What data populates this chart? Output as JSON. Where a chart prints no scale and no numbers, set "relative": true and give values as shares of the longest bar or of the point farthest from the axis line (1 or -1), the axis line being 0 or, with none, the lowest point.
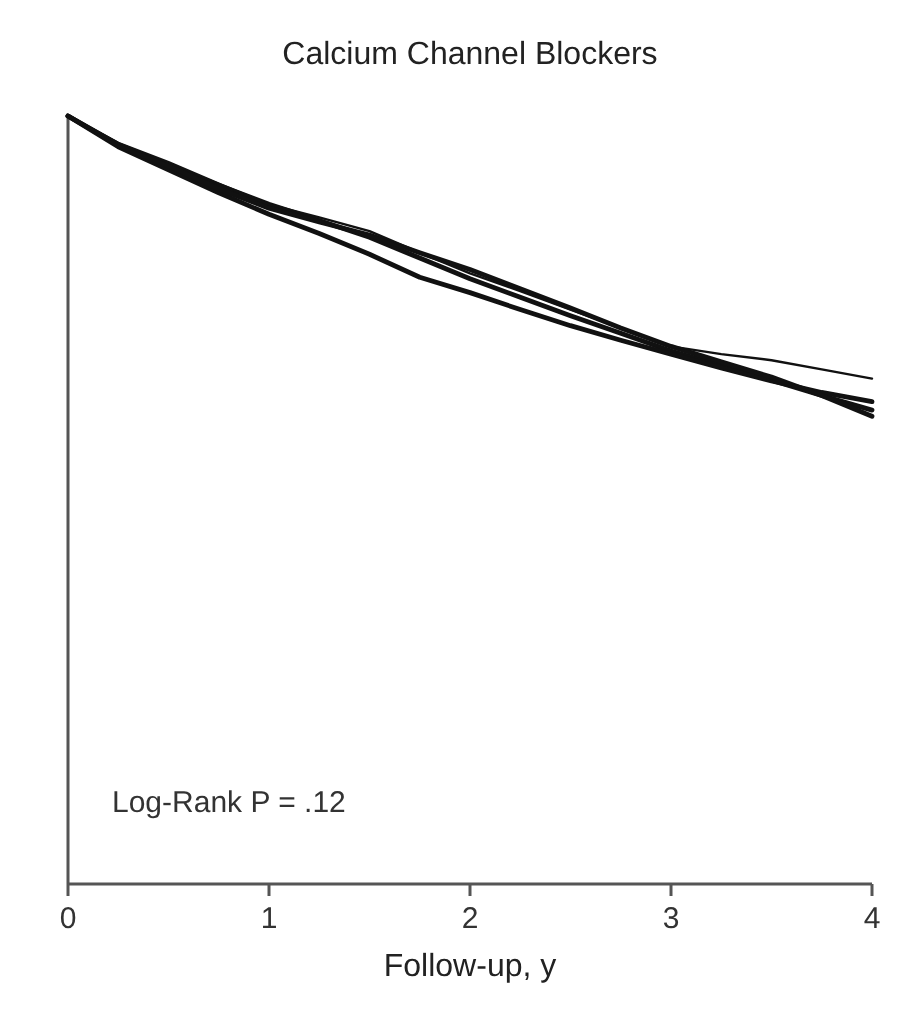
{
  "chart_data": {
    "type": "line",
    "title": "Calcium Channel Blockers",
    "xlabel": "Follow-up, y",
    "relative": true,
    "xlim": [
      0,
      4
    ],
    "xticks": [
      0,
      1,
      2,
      3,
      4
    ],
    "grid": false,
    "marker": "none",
    "line_style": "solid",
    "annotations": [
      "Log-Rank P = .12"
    ],
    "x": [
      0,
      0.25,
      0.5,
      0.75,
      1,
      1.25,
      1.5,
      1.75,
      2,
      2.25,
      2.5,
      2.75,
      3,
      3.25,
      3.5,
      3.75,
      4
    ],
    "series": [
      {
        "color": "#111111",
        "values": [
          1,
          0.963,
          0.936,
          0.91,
          0.885,
          0.864,
          0.842,
          0.815,
          0.788,
          0.764,
          0.74,
          0.717,
          0.694,
          0.675,
          0.656,
          0.636,
          0.617
        ]
      },
      {
        "color": "#111111",
        "values": [
          1,
          0.96,
          0.93,
          0.9,
          0.872,
          0.847,
          0.82,
          0.79,
          0.77,
          0.748,
          0.727,
          0.708,
          0.69,
          0.672,
          0.655,
          0.64,
          0.628
        ]
      },
      {
        "color": "#111111",
        "values": [
          1,
          0.962,
          0.935,
          0.905,
          0.88,
          0.862,
          0.845,
          0.822,
          0.8,
          0.775,
          0.75,
          0.724,
          0.7,
          0.68,
          0.66,
          0.636,
          0.609
        ]
      },
      {
        "color": "#111111",
        "values": [
          1,
          0.965,
          0.94,
          0.912,
          0.885,
          0.868,
          0.85,
          0.822,
          0.795,
          0.772,
          0.748,
          0.724,
          0.7,
          0.69,
          0.682,
          0.67,
          0.658
        ]
      }
    ]
  }
}
